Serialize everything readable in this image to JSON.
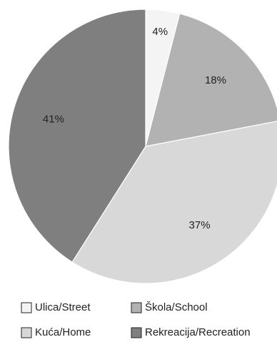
{
  "chart_data": {
    "type": "pie",
    "slices": [
      {
        "label": "Ulica/Street",
        "value": 4,
        "label_text": "4%",
        "color": "#f4f4f4"
      },
      {
        "label": "Škola/School",
        "value": 18,
        "label_text": "18%",
        "color": "#b2b2b2"
      },
      {
        "label": "Kuća/Home",
        "value": 37,
        "label_text": "37%",
        "color": "#d8d8d8"
      },
      {
        "label": "Rekreacija/Recreation",
        "value": 41,
        "label_text": "41%",
        "color": "#7f7f7f"
      }
    ],
    "legend": {
      "position": "bottom",
      "entries": [
        "Ulica/Street",
        "Škola/School",
        "Kuća/Home",
        "Rekreacija/Recreation"
      ]
    }
  }
}
